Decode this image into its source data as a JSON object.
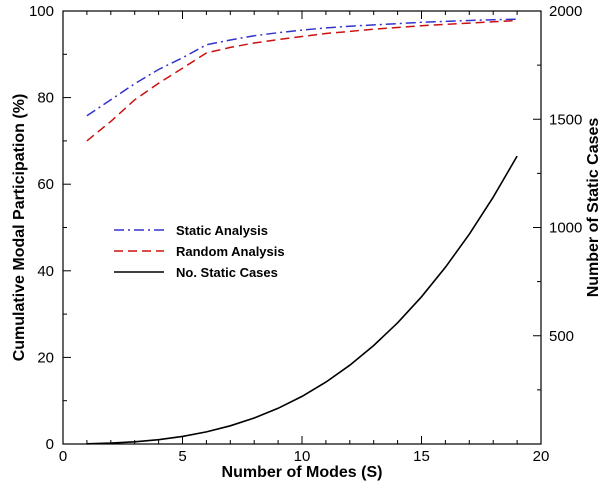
{
  "chart_data": {
    "type": "line",
    "xlabel": "Number of Modes (S)",
    "ylabel_left": "Cumulative Modal Participation (%)",
    "ylabel_right": "Number of Static Cases",
    "xlim": [
      0,
      20
    ],
    "ylim_left": [
      0,
      100
    ],
    "ylim_right": [
      0,
      2000
    ],
    "x_ticks": [
      0,
      5,
      10,
      15,
      20
    ],
    "y_left_ticks": [
      0,
      20,
      40,
      60,
      80,
      100
    ],
    "y_right_ticks": [
      500,
      1000,
      1500,
      2000
    ],
    "grid": false,
    "legend_position": "middle-left",
    "series": [
      {
        "name": "Static Analysis",
        "axis": "left",
        "color": "#3333cc",
        "style": "dash-dot",
        "x": [
          1,
          2,
          3,
          4,
          5,
          6,
          7,
          8,
          9,
          10,
          11,
          12,
          13,
          14,
          15,
          16,
          17,
          18,
          19
        ],
        "y": [
          75.8,
          79.5,
          83.2,
          86.5,
          89.2,
          92.2,
          93.3,
          94.3,
          95.0,
          95.6,
          96.1,
          96.5,
          96.8,
          97.1,
          97.4,
          97.6,
          97.8,
          98.0,
          98.1
        ]
      },
      {
        "name": "Random Analysis",
        "axis": "left",
        "color": "#cc1111",
        "style": "dashed",
        "x": [
          1,
          2,
          3,
          4,
          5,
          6,
          7,
          8,
          9,
          10,
          11,
          12,
          13,
          14,
          15,
          16,
          17,
          18,
          19
        ],
        "y": [
          70.0,
          74.5,
          79.5,
          83.3,
          86.8,
          90.3,
          91.6,
          92.6,
          93.4,
          94.1,
          94.8,
          95.3,
          95.8,
          96.2,
          96.6,
          96.9,
          97.2,
          97.5,
          97.8
        ]
      },
      {
        "name": "No. Static Cases",
        "axis": "right",
        "color": "#000000",
        "style": "solid",
        "x": [
          1,
          2,
          3,
          4,
          5,
          6,
          7,
          8,
          9,
          10,
          11,
          12,
          13,
          14,
          15,
          16,
          17,
          18,
          19
        ],
        "y": [
          1,
          4,
          10,
          20,
          35,
          56,
          84,
          120,
          165,
          220,
          286,
          364,
          455,
          560,
          680,
          816,
          969,
          1140,
          1330
        ]
      }
    ]
  }
}
